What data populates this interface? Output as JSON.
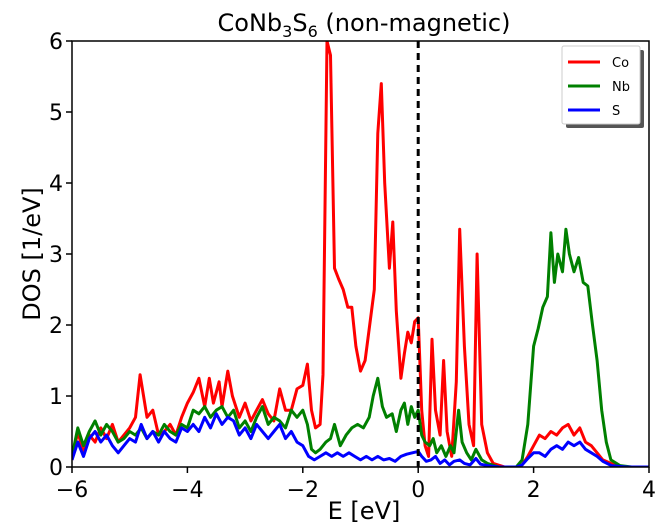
{
  "chart_data": {
    "type": "line",
    "title_main": "CoNb",
    "title_sub1": "3",
    "title_mid": "S",
    "title_sub2": "6",
    "title_tail": " (non-magnetic)",
    "xlabel": "E [eV]",
    "ylabel": "DOS [1/eV]",
    "xlim": [
      -6,
      4
    ],
    "ylim": [
      0,
      6
    ],
    "xticks": [
      -6,
      -4,
      -2,
      0,
      2,
      4
    ],
    "xtick_labels": [
      "−6",
      "−4",
      "−2",
      "0",
      "2",
      "4"
    ],
    "yticks": [
      0,
      1,
      2,
      3,
      4,
      5,
      6
    ],
    "ytick_labels": [
      "0",
      "1",
      "2",
      "3",
      "4",
      "5",
      "6"
    ],
    "grid": false,
    "legend_position": "top-right",
    "fermi_level": 0,
    "series": [
      {
        "name": "Co",
        "color": "#ff0000",
        "points": [
          [
            -6,
            0.1
          ],
          [
            -5.9,
            0.5
          ],
          [
            -5.8,
            0.2
          ],
          [
            -5.7,
            0.45
          ],
          [
            -5.6,
            0.35
          ],
          [
            -5.5,
            0.55
          ],
          [
            -5.4,
            0.4
          ],
          [
            -5.3,
            0.6
          ],
          [
            -5.2,
            0.35
          ],
          [
            -5.1,
            0.45
          ],
          [
            -5.0,
            0.55
          ],
          [
            -4.9,
            0.7
          ],
          [
            -4.82,
            1.3
          ],
          [
            -4.7,
            0.7
          ],
          [
            -4.6,
            0.8
          ],
          [
            -4.5,
            0.45
          ],
          [
            -4.4,
            0.5
          ],
          [
            -4.3,
            0.6
          ],
          [
            -4.2,
            0.45
          ],
          [
            -4.1,
            0.7
          ],
          [
            -4.0,
            0.9
          ],
          [
            -3.9,
            1.05
          ],
          [
            -3.8,
            1.25
          ],
          [
            -3.7,
            0.85
          ],
          [
            -3.62,
            1.25
          ],
          [
            -3.55,
            0.9
          ],
          [
            -3.45,
            1.2
          ],
          [
            -3.4,
            0.85
          ],
          [
            -3.3,
            1.35
          ],
          [
            -3.22,
            1.0
          ],
          [
            -3.1,
            0.7
          ],
          [
            -3.0,
            0.9
          ],
          [
            -2.9,
            0.65
          ],
          [
            -2.8,
            0.8
          ],
          [
            -2.7,
            0.95
          ],
          [
            -2.6,
            0.75
          ],
          [
            -2.5,
            0.65
          ],
          [
            -2.4,
            1.1
          ],
          [
            -2.3,
            0.8
          ],
          [
            -2.2,
            0.8
          ],
          [
            -2.1,
            1.1
          ],
          [
            -2.0,
            1.15
          ],
          [
            -1.92,
            1.45
          ],
          [
            -1.85,
            0.8
          ],
          [
            -1.78,
            0.55
          ],
          [
            -1.7,
            0.6
          ],
          [
            -1.65,
            1.3
          ],
          [
            -1.58,
            6.0
          ],
          [
            -1.52,
            5.8
          ],
          [
            -1.45,
            2.8
          ],
          [
            -1.38,
            2.65
          ],
          [
            -1.3,
            2.5
          ],
          [
            -1.22,
            2.25
          ],
          [
            -1.15,
            2.25
          ],
          [
            -1.08,
            1.7
          ],
          [
            -1.0,
            1.35
          ],
          [
            -0.92,
            1.5
          ],
          [
            -0.84,
            2.0
          ],
          [
            -0.76,
            2.5
          ],
          [
            -0.7,
            4.7
          ],
          [
            -0.64,
            5.4
          ],
          [
            -0.58,
            4.0
          ],
          [
            -0.5,
            2.8
          ],
          [
            -0.44,
            3.45
          ],
          [
            -0.38,
            2.2
          ],
          [
            -0.3,
            1.25
          ],
          [
            -0.24,
            1.6
          ],
          [
            -0.18,
            1.9
          ],
          [
            -0.12,
            1.75
          ],
          [
            -0.06,
            2.05
          ],
          [
            0.0,
            2.1
          ],
          [
            0.06,
            0.8
          ],
          [
            0.12,
            0.3
          ],
          [
            0.18,
            0.15
          ],
          [
            0.24,
            1.8
          ],
          [
            0.3,
            0.8
          ],
          [
            0.38,
            0.45
          ],
          [
            0.44,
            1.5
          ],
          [
            0.5,
            0.5
          ],
          [
            0.58,
            0.15
          ],
          [
            0.66,
            1.2
          ],
          [
            0.72,
            3.35
          ],
          [
            0.8,
            1.7
          ],
          [
            0.88,
            0.6
          ],
          [
            0.96,
            0.3
          ],
          [
            1.02,
            3.0
          ],
          [
            1.1,
            0.6
          ],
          [
            1.2,
            0.2
          ],
          [
            1.3,
            0.05
          ],
          [
            1.5,
            0.0
          ],
          [
            1.7,
            0.0
          ],
          [
            1.8,
            0.03
          ],
          [
            1.9,
            0.15
          ],
          [
            2.0,
            0.3
          ],
          [
            2.1,
            0.45
          ],
          [
            2.2,
            0.4
          ],
          [
            2.3,
            0.5
          ],
          [
            2.4,
            0.45
          ],
          [
            2.5,
            0.55
          ],
          [
            2.6,
            0.6
          ],
          [
            2.7,
            0.45
          ],
          [
            2.8,
            0.55
          ],
          [
            2.9,
            0.35
          ],
          [
            3.0,
            0.3
          ],
          [
            3.1,
            0.2
          ],
          [
            3.2,
            0.1
          ],
          [
            3.4,
            0.03
          ],
          [
            3.6,
            0.0
          ],
          [
            4.0,
            0.0
          ]
        ]
      },
      {
        "name": "Nb",
        "color": "#008000",
        "points": [
          [
            -6,
            0.15
          ],
          [
            -5.9,
            0.55
          ],
          [
            -5.8,
            0.3
          ],
          [
            -5.7,
            0.5
          ],
          [
            -5.6,
            0.65
          ],
          [
            -5.5,
            0.45
          ],
          [
            -5.4,
            0.6
          ],
          [
            -5.3,
            0.5
          ],
          [
            -5.2,
            0.35
          ],
          [
            -5.1,
            0.4
          ],
          [
            -5.0,
            0.5
          ],
          [
            -4.9,
            0.45
          ],
          [
            -4.8,
            0.55
          ],
          [
            -4.7,
            0.4
          ],
          [
            -4.6,
            0.5
          ],
          [
            -4.5,
            0.45
          ],
          [
            -4.4,
            0.6
          ],
          [
            -4.3,
            0.5
          ],
          [
            -4.2,
            0.45
          ],
          [
            -4.1,
            0.6
          ],
          [
            -4.0,
            0.55
          ],
          [
            -3.9,
            0.8
          ],
          [
            -3.8,
            0.75
          ],
          [
            -3.7,
            0.85
          ],
          [
            -3.6,
            0.7
          ],
          [
            -3.5,
            0.8
          ],
          [
            -3.4,
            0.85
          ],
          [
            -3.3,
            0.7
          ],
          [
            -3.2,
            0.8
          ],
          [
            -3.1,
            0.55
          ],
          [
            -3.0,
            0.65
          ],
          [
            -2.9,
            0.5
          ],
          [
            -2.8,
            0.7
          ],
          [
            -2.7,
            0.85
          ],
          [
            -2.6,
            0.6
          ],
          [
            -2.5,
            0.7
          ],
          [
            -2.4,
            0.65
          ],
          [
            -2.3,
            0.55
          ],
          [
            -2.2,
            0.8
          ],
          [
            -2.1,
            0.7
          ],
          [
            -2.0,
            0.8
          ],
          [
            -1.92,
            0.6
          ],
          [
            -1.85,
            0.25
          ],
          [
            -1.78,
            0.2
          ],
          [
            -1.7,
            0.25
          ],
          [
            -1.6,
            0.35
          ],
          [
            -1.52,
            0.4
          ],
          [
            -1.45,
            0.6
          ],
          [
            -1.35,
            0.3
          ],
          [
            -1.25,
            0.45
          ],
          [
            -1.15,
            0.55
          ],
          [
            -1.05,
            0.6
          ],
          [
            -0.95,
            0.55
          ],
          [
            -0.85,
            0.7
          ],
          [
            -0.78,
            1.0
          ],
          [
            -0.7,
            1.25
          ],
          [
            -0.62,
            0.85
          ],
          [
            -0.55,
            0.7
          ],
          [
            -0.45,
            0.75
          ],
          [
            -0.38,
            0.5
          ],
          [
            -0.3,
            0.8
          ],
          [
            -0.24,
            0.9
          ],
          [
            -0.18,
            0.6
          ],
          [
            -0.12,
            0.85
          ],
          [
            -0.06,
            0.7
          ],
          [
            0.0,
            0.8
          ],
          [
            0.06,
            0.45
          ],
          [
            0.12,
            0.35
          ],
          [
            0.2,
            0.3
          ],
          [
            0.26,
            0.4
          ],
          [
            0.32,
            0.2
          ],
          [
            0.4,
            0.3
          ],
          [
            0.48,
            0.15
          ],
          [
            0.56,
            0.3
          ],
          [
            0.62,
            0.2
          ],
          [
            0.7,
            0.8
          ],
          [
            0.76,
            0.35
          ],
          [
            0.84,
            0.2
          ],
          [
            0.92,
            0.1
          ],
          [
            1.0,
            0.25
          ],
          [
            1.1,
            0.1
          ],
          [
            1.2,
            0.05
          ],
          [
            1.4,
            0.0
          ],
          [
            1.7,
            0.0
          ],
          [
            1.8,
            0.1
          ],
          [
            1.9,
            0.6
          ],
          [
            2.0,
            1.7
          ],
          [
            2.08,
            1.95
          ],
          [
            2.16,
            2.25
          ],
          [
            2.24,
            2.4
          ],
          [
            2.3,
            3.3
          ],
          [
            2.36,
            2.6
          ],
          [
            2.42,
            3.0
          ],
          [
            2.5,
            2.75
          ],
          [
            2.56,
            3.35
          ],
          [
            2.62,
            3.0
          ],
          [
            2.7,
            2.75
          ],
          [
            2.78,
            2.95
          ],
          [
            2.86,
            2.6
          ],
          [
            2.94,
            2.55
          ],
          [
            3.02,
            2.0
          ],
          [
            3.1,
            1.5
          ],
          [
            3.18,
            0.8
          ],
          [
            3.26,
            0.35
          ],
          [
            3.34,
            0.1
          ],
          [
            3.5,
            0.02
          ],
          [
            3.7,
            0.0
          ],
          [
            4.0,
            0.0
          ]
        ]
      },
      {
        "name": "S",
        "color": "#0000ff",
        "points": [
          [
            -6,
            0.1
          ],
          [
            -5.9,
            0.35
          ],
          [
            -5.8,
            0.15
          ],
          [
            -5.7,
            0.4
          ],
          [
            -5.6,
            0.5
          ],
          [
            -5.5,
            0.35
          ],
          [
            -5.4,
            0.45
          ],
          [
            -5.3,
            0.3
          ],
          [
            -5.2,
            0.2
          ],
          [
            -5.1,
            0.3
          ],
          [
            -5.0,
            0.4
          ],
          [
            -4.9,
            0.35
          ],
          [
            -4.8,
            0.6
          ],
          [
            -4.7,
            0.4
          ],
          [
            -4.6,
            0.5
          ],
          [
            -4.5,
            0.35
          ],
          [
            -4.4,
            0.5
          ],
          [
            -4.3,
            0.4
          ],
          [
            -4.2,
            0.35
          ],
          [
            -4.1,
            0.55
          ],
          [
            -4.0,
            0.5
          ],
          [
            -3.9,
            0.6
          ],
          [
            -3.8,
            0.5
          ],
          [
            -3.7,
            0.7
          ],
          [
            -3.6,
            0.55
          ],
          [
            -3.5,
            0.75
          ],
          [
            -3.4,
            0.6
          ],
          [
            -3.3,
            0.7
          ],
          [
            -3.2,
            0.65
          ],
          [
            -3.1,
            0.45
          ],
          [
            -3.0,
            0.55
          ],
          [
            -2.9,
            0.4
          ],
          [
            -2.8,
            0.6
          ],
          [
            -2.7,
            0.5
          ],
          [
            -2.6,
            0.4
          ],
          [
            -2.5,
            0.5
          ],
          [
            -2.4,
            0.6
          ],
          [
            -2.3,
            0.4
          ],
          [
            -2.2,
            0.5
          ],
          [
            -2.1,
            0.35
          ],
          [
            -2.0,
            0.3
          ],
          [
            -1.9,
            0.15
          ],
          [
            -1.8,
            0.1
          ],
          [
            -1.7,
            0.15
          ],
          [
            -1.6,
            0.2
          ],
          [
            -1.5,
            0.15
          ],
          [
            -1.4,
            0.2
          ],
          [
            -1.3,
            0.15
          ],
          [
            -1.2,
            0.2
          ],
          [
            -1.1,
            0.15
          ],
          [
            -1.0,
            0.1
          ],
          [
            -0.9,
            0.15
          ],
          [
            -0.8,
            0.1
          ],
          [
            -0.7,
            0.15
          ],
          [
            -0.6,
            0.1
          ],
          [
            -0.5,
            0.12
          ],
          [
            -0.4,
            0.08
          ],
          [
            -0.3,
            0.15
          ],
          [
            -0.2,
            0.18
          ],
          [
            -0.1,
            0.2
          ],
          [
            0.0,
            0.22
          ],
          [
            0.06,
            0.15
          ],
          [
            0.14,
            0.08
          ],
          [
            0.22,
            0.1
          ],
          [
            0.3,
            0.15
          ],
          [
            0.38,
            0.05
          ],
          [
            0.46,
            0.1
          ],
          [
            0.54,
            0.03
          ],
          [
            0.62,
            0.08
          ],
          [
            0.72,
            0.1
          ],
          [
            0.8,
            0.05
          ],
          [
            0.9,
            0.03
          ],
          [
            1.0,
            0.12
          ],
          [
            1.08,
            0.04
          ],
          [
            1.2,
            0.02
          ],
          [
            1.4,
            0.0
          ],
          [
            1.7,
            0.0
          ],
          [
            1.8,
            0.03
          ],
          [
            1.9,
            0.12
          ],
          [
            2.0,
            0.2
          ],
          [
            2.1,
            0.2
          ],
          [
            2.2,
            0.15
          ],
          [
            2.3,
            0.25
          ],
          [
            2.4,
            0.3
          ],
          [
            2.5,
            0.25
          ],
          [
            2.6,
            0.35
          ],
          [
            2.7,
            0.3
          ],
          [
            2.8,
            0.35
          ],
          [
            2.9,
            0.25
          ],
          [
            3.0,
            0.2
          ],
          [
            3.1,
            0.15
          ],
          [
            3.2,
            0.08
          ],
          [
            3.35,
            0.02
          ],
          [
            3.6,
            0.0
          ],
          [
            4.0,
            0.0
          ]
        ]
      }
    ]
  }
}
